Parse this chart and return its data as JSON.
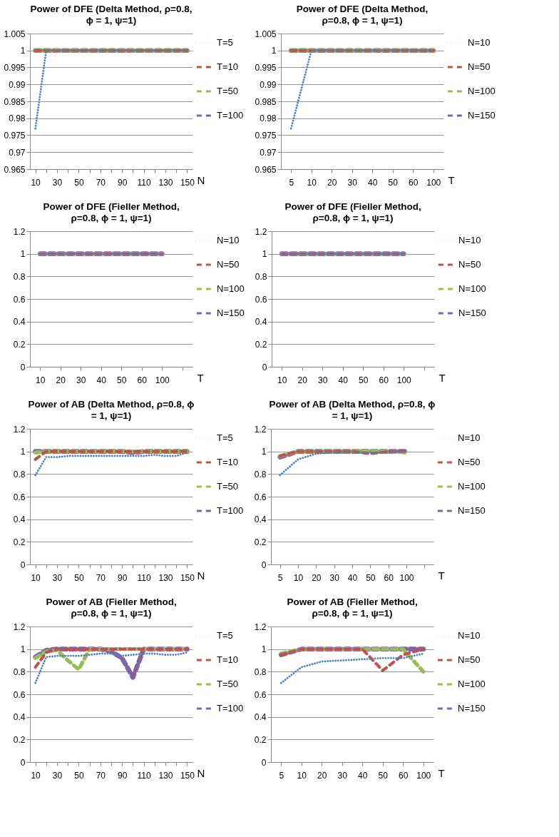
{
  "chart_data": [
    {
      "type": "line",
      "title": "Power of DFE (Delta Method, ρ=0.8,\nϕ = 1, ψ=1)",
      "xlabel": "N",
      "categories": [
        "10",
        null,
        "30",
        null,
        "50",
        null,
        "70",
        null,
        "90",
        null,
        "110",
        null,
        "130",
        null,
        "150"
      ],
      "ylim": [
        0.965,
        1.005
      ],
      "yticks": [
        0.965,
        0.97,
        0.975,
        0.98,
        0.985,
        0.99,
        0.995,
        1,
        1.005
      ],
      "grid": "y",
      "legend": "right",
      "series": [
        {
          "name": "T=5",
          "color": "#4f81bd",
          "line_style": "dotted",
          "values": [
            0.977,
            1,
            1,
            1,
            1,
            1,
            1,
            1,
            1,
            1,
            1,
            1,
            1,
            1,
            1
          ]
        },
        {
          "name": "T=10",
          "color": "#c0504d",
          "line_style": "dashed",
          "values": [
            1,
            1,
            1,
            1,
            1,
            1,
            1,
            1,
            1,
            1,
            1,
            1,
            1,
            1,
            1
          ]
        },
        {
          "name": "T=50",
          "color": "#9bbb59",
          "line_style": "dashed",
          "values": [
            1,
            1,
            1,
            1,
            1,
            1,
            1,
            1,
            1,
            1,
            1,
            1,
            1,
            1,
            1
          ]
        },
        {
          "name": "T=100",
          "color": "#8064a2",
          "line_style": "dashed",
          "values": [
            1,
            1,
            1,
            1,
            1,
            1,
            1,
            1,
            1,
            1,
            1,
            1,
            1,
            1,
            1
          ]
        }
      ]
    },
    {
      "type": "line",
      "title": "Power of DFE (Delta Method,\nρ=0.8, ϕ = 1,  ψ=1)",
      "xlabel": "T",
      "categories": [
        "5",
        "10",
        "20",
        "30",
        "40",
        "50",
        "60",
        "100"
      ],
      "ylim": [
        0.965,
        1.005
      ],
      "yticks": [
        0.965,
        0.97,
        0.975,
        0.98,
        0.985,
        0.99,
        0.995,
        1,
        1.005
      ],
      "grid": "y",
      "legend": "right",
      "series": [
        {
          "name": "N=10",
          "color": "#4f81bd",
          "line_style": "dotted",
          "values": [
            0.977,
            1,
            1,
            1,
            1,
            1,
            1,
            1
          ]
        },
        {
          "name": "N=50",
          "color": "#c0504d",
          "line_style": "dashed",
          "values": [
            1,
            1,
            1,
            1,
            1,
            1,
            1,
            1
          ]
        },
        {
          "name": "N=100",
          "color": "#9bbb59",
          "line_style": "dashed",
          "values": [
            1,
            1,
            1,
            1,
            1,
            1,
            1,
            1
          ]
        },
        {
          "name": "N=150",
          "color": "#8064a2",
          "line_style": "dashed",
          "values": [
            1,
            1,
            1,
            1,
            1,
            1,
            1,
            1
          ]
        }
      ]
    },
    {
      "type": "line",
      "title": "Power of DFE (Fieller Method,\nρ=0.8, ϕ = 1,  ψ=1)",
      "xlabel": "T",
      "categories": [
        "10",
        "20",
        "30",
        "40",
        "50",
        "60",
        "100",
        null
      ],
      "ylim": [
        0,
        1.2
      ],
      "yticks": [
        0,
        0.2,
        0.4,
        0.6,
        0.8,
        1,
        1.2
      ],
      "grid": "y",
      "legend": "right",
      "series": [
        {
          "name": "N=10",
          "color": "#4f81bd",
          "line_style": "dotted",
          "values": [
            1,
            1,
            1,
            1,
            1,
            1,
            1,
            null
          ]
        },
        {
          "name": "N=50",
          "color": "#c0504d",
          "line_style": "dashed",
          "values": [
            1,
            1,
            1,
            1,
            1,
            1,
            1,
            null
          ]
        },
        {
          "name": "N=100",
          "color": "#9bbb59",
          "line_style": "dashed",
          "values": [
            1,
            1,
            1,
            1,
            1,
            1,
            1,
            null
          ]
        },
        {
          "name": "N=150",
          "color": "#8064a2",
          "line_style": "dashed",
          "values": [
            1,
            1,
            1,
            1,
            1,
            1,
            1,
            null
          ]
        }
      ]
    },
    {
      "type": "line",
      "title": "Power of DFE (Fieller Method,\nρ=0.8, ϕ = 1,  ψ=1)",
      "xlabel": "T",
      "categories": [
        "10",
        "20",
        "30",
        "40",
        "50",
        "60",
        "100",
        null
      ],
      "ylim": [
        0,
        1.2
      ],
      "yticks": [
        0,
        0.2,
        0.4,
        0.6,
        0.8,
        1,
        1.2
      ],
      "grid": "y",
      "legend": "right",
      "series": [
        {
          "name": "N=10",
          "color": "#4f81bd",
          "line_style": "dotted",
          "values": [
            1,
            1,
            1,
            1,
            1,
            1,
            1,
            null
          ]
        },
        {
          "name": "N=50",
          "color": "#c0504d",
          "line_style": "dashed",
          "values": [
            1,
            1,
            1,
            1,
            1,
            1,
            1,
            null
          ]
        },
        {
          "name": "N=100",
          "color": "#9bbb59",
          "line_style": "dashed",
          "values": [
            1,
            1,
            1,
            1,
            1,
            1,
            1,
            null
          ]
        },
        {
          "name": "N=150",
          "color": "#8064a2",
          "line_style": "dashed",
          "values": [
            1,
            1,
            1,
            1,
            1,
            1,
            1,
            null
          ]
        }
      ]
    },
    {
      "type": "line",
      "title": "Power of AB (Delta Method, ρ=0.8, ϕ\n= 1, ψ=1)",
      "xlabel": "N",
      "categories": [
        "10",
        null,
        "30",
        null,
        "50",
        null,
        "70",
        null,
        "90",
        null,
        "110",
        null,
        "130",
        null,
        "150"
      ],
      "ylim": [
        0,
        1.2
      ],
      "yticks": [
        0,
        0.2,
        0.4,
        0.6,
        0.8,
        1,
        1.2
      ],
      "grid": "y",
      "legend": "right",
      "series": [
        {
          "name": "T=5",
          "color": "#4f81bd",
          "line_style": "dotted",
          "values": [
            0.79,
            0.95,
            0.95,
            0.96,
            0.96,
            0.96,
            0.96,
            0.96,
            0.96,
            0.96,
            0.96,
            0.97,
            0.96,
            0.96,
            0.99
          ]
        },
        {
          "name": "T=10",
          "color": "#c0504d",
          "line_style": "dashed",
          "values": [
            0.93,
            1,
            1,
            1,
            1,
            1,
            1,
            1,
            1,
            1,
            1,
            1,
            1,
            1,
            1
          ]
        },
        {
          "name": "T=50",
          "color": "#9bbb59",
          "line_style": "dashed",
          "values": [
            0.99,
            1,
            1,
            1,
            1,
            1,
            1,
            1,
            1,
            1,
            1,
            1,
            1,
            1,
            1
          ]
        },
        {
          "name": "T=100",
          "color": "#8064a2",
          "line_style": "dashed",
          "values": [
            1,
            1,
            1,
            1,
            1,
            1,
            1,
            1,
            1,
            0.99,
            1,
            1,
            1,
            1,
            1
          ]
        }
      ]
    },
    {
      "type": "line",
      "title": "Power of AB (Delta Method, ρ=0.8, ϕ\n= 1, ψ=1)",
      "xlabel": "T",
      "categories": [
        "5",
        "10",
        "20",
        "30",
        "40",
        "50",
        "60",
        "100",
        null
      ],
      "ylim": [
        0,
        1.2
      ],
      "yticks": [
        0,
        0.2,
        0.4,
        0.6,
        0.8,
        1,
        1.2
      ],
      "grid": "y",
      "legend": "right",
      "series": [
        {
          "name": "N=10",
          "color": "#4f81bd",
          "line_style": "dotted",
          "values": [
            0.79,
            0.93,
            0.98,
            0.99,
            0.99,
            0.99,
            0.99,
            1,
            null
          ]
        },
        {
          "name": "N=50",
          "color": "#c0504d",
          "line_style": "dashed",
          "values": [
            0.96,
            1,
            1,
            1,
            1,
            0.98,
            1,
            1,
            null
          ]
        },
        {
          "name": "N=100",
          "color": "#9bbb59",
          "line_style": "dashed",
          "values": [
            0.96,
            1,
            1,
            1,
            1,
            1,
            1,
            0.99,
            null
          ]
        },
        {
          "name": "N=150",
          "color": "#8064a2",
          "line_style": "dashed",
          "values": [
            0.95,
            1,
            1,
            1,
            1,
            1,
            1,
            1,
            null
          ]
        }
      ]
    },
    {
      "type": "line",
      "title": "Power of AB (Fieller Method,\nρ=0.8, ϕ = 1,  ψ=1)",
      "xlabel": "N",
      "categories": [
        "10",
        null,
        "30",
        null,
        "50",
        null,
        "70",
        null,
        "90",
        null,
        "110",
        null,
        "130",
        null,
        "150"
      ],
      "ylim": [
        0,
        1.2
      ],
      "yticks": [
        0,
        0.2,
        0.4,
        0.6,
        0.8,
        1,
        1.2
      ],
      "grid": "y",
      "legend": "right",
      "series": [
        {
          "name": "T=5",
          "color": "#4f81bd",
          "line_style": "dotted",
          "values": [
            0.7,
            0.93,
            0.94,
            0.94,
            0.94,
            0.95,
            0.96,
            0.96,
            0.94,
            0.95,
            0.96,
            0.96,
            0.95,
            0.95,
            0.97
          ]
        },
        {
          "name": "T=10",
          "color": "#c0504d",
          "line_style": "dashed",
          "values": [
            0.84,
            0.97,
            1,
            1,
            1,
            1,
            1,
            1,
            1,
            1,
            1,
            1,
            1,
            1,
            1
          ]
        },
        {
          "name": "T=50",
          "color": "#9bbb59",
          "line_style": "dashed",
          "values": [
            0.92,
            0.98,
            0.99,
            0.9,
            0.82,
            1,
            1,
            1,
            1,
            1,
            1,
            1,
            1,
            1,
            1
          ]
        },
        {
          "name": "T=100",
          "color": "#8064a2",
          "line_style": "dashed",
          "values": [
            0.93,
            0.99,
            1,
            1,
            1,
            1,
            1,
            0.98,
            0.92,
            0.75,
            1,
            1,
            1,
            1,
            1
          ]
        }
      ]
    },
    {
      "type": "line",
      "title": "Power of AB (Fieller Method,\nρ=0.8, ϕ = 1,  ψ=1)",
      "xlabel": "T",
      "categories": [
        "5",
        "10",
        "20",
        "30",
        "40",
        "50",
        "60",
        "100"
      ],
      "ylim": [
        0,
        1.2
      ],
      "yticks": [
        0,
        0.2,
        0.4,
        0.6,
        0.8,
        1,
        1.2
      ],
      "grid": "y",
      "legend": "right",
      "series": [
        {
          "name": "N=10",
          "color": "#4f81bd",
          "line_style": "dotted",
          "values": [
            0.7,
            0.84,
            0.89,
            0.9,
            0.91,
            0.92,
            0.92,
            0.96
          ]
        },
        {
          "name": "N=50",
          "color": "#c0504d",
          "line_style": "dashed",
          "values": [
            0.95,
            1,
            1,
            1,
            1,
            0.81,
            0.95,
            1
          ]
        },
        {
          "name": "N=100",
          "color": "#9bbb59",
          "line_style": "dashed",
          "values": [
            0.96,
            1,
            1,
            1,
            1,
            1,
            1,
            0.8
          ]
        },
        {
          "name": "N=150",
          "color": "#8064a2",
          "line_style": "dashed",
          "values": [
            0.95,
            1,
            1,
            1,
            1,
            1,
            1,
            1
          ]
        }
      ]
    }
  ]
}
